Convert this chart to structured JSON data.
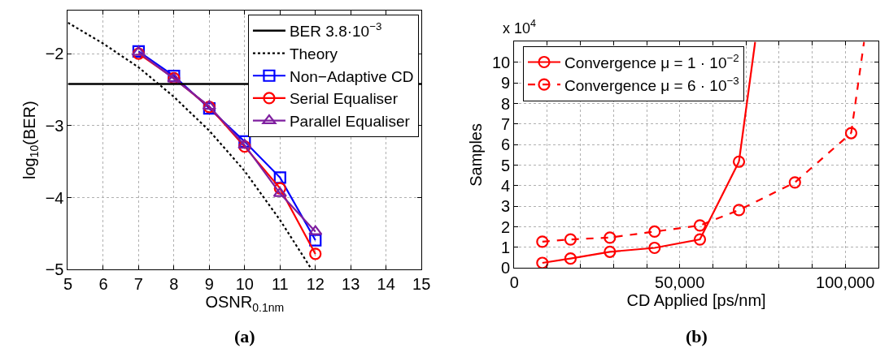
{
  "chart_data": [
    {
      "type": "line",
      "title": "(a)",
      "xlabel": "OSNR$_{0.1nm}$",
      "ylabel": "log$_{10}$(BER)",
      "xlim": [
        5,
        15
      ],
      "xticks": [
        5,
        6,
        7,
        8,
        9,
        10,
        11,
        12,
        13,
        14,
        15
      ],
      "ylim": [
        -5,
        -1.4
      ],
      "yticks": [
        -2,
        -3,
        -4,
        -5
      ],
      "grid": true,
      "legend": "top right",
      "ref_lines": [
        {
          "axis": "y",
          "value": -2.42,
          "label": "BER 3.8·10$^{−3}$",
          "color": "#000000",
          "line_style": "solid"
        }
      ],
      "series": [
        {
          "name": "Theory",
          "color": "#000000",
          "x": [
            5,
            6,
            7,
            8,
            9,
            10,
            11,
            11.9
          ],
          "values": [
            -1.57,
            -1.86,
            -2.19,
            -2.6,
            -3.07,
            -3.63,
            -4.31,
            -5
          ],
          "marker": "none",
          "line_style": "dotted"
        },
        {
          "name": "Non−Adaptive CD",
          "color": "#0000ff",
          "x": [
            7,
            8,
            9,
            10,
            11,
            12
          ],
          "values": [
            -1.97,
            -2.31,
            -2.76,
            -3.22,
            -3.72,
            -4.59
          ],
          "marker": "square",
          "line_style": "solid"
        },
        {
          "name": "Serial Equaliser",
          "color": "#ff0000",
          "x": [
            7,
            8,
            9,
            10,
            11,
            12
          ],
          "values": [
            -2.0,
            -2.34,
            -2.74,
            -3.29,
            -3.87,
            -4.78
          ],
          "marker": "circle",
          "line_style": "solid"
        },
        {
          "name": "Parallel Equaliser",
          "color": "#7f1f9f",
          "x": [
            7,
            8,
            9,
            10,
            11,
            12
          ],
          "values": [
            -1.98,
            -2.35,
            -2.73,
            -3.27,
            -3.94,
            -4.47
          ],
          "marker": "triangle",
          "line_style": "solid"
        }
      ]
    },
    {
      "type": "line",
      "title": "(b)",
      "xlabel": "CD Applied [ps/nm]",
      "ylabel": "Samples",
      "annotations": [
        "x 10$^{4}$"
      ],
      "xlim": [
        0,
        110000
      ],
      "xticks": [
        {
          "value": 0,
          "label": "0"
        },
        {
          "value": 10000,
          "label": null
        },
        {
          "value": 20000,
          "label": null
        },
        {
          "value": 30000,
          "label": null
        },
        {
          "value": 40000,
          "label": null
        },
        {
          "value": 50000,
          "label": "50,000"
        },
        {
          "value": 60000,
          "label": null
        },
        {
          "value": 70000,
          "label": null
        },
        {
          "value": 80000,
          "label": null
        },
        {
          "value": 90000,
          "label": null
        },
        {
          "value": 100000,
          "label": "100,000"
        }
      ],
      "ylim": [
        0,
        11
      ],
      "yticks": [
        0,
        1,
        2,
        3,
        4,
        5,
        6,
        7,
        8,
        9,
        10
      ],
      "grid": true,
      "legend": "top left",
      "series": [
        {
          "name": "Convergence μ = 1 · 10$^{−2}$",
          "color": "#ff0000",
          "x": [
            8500,
            17000,
            28900,
            42400,
            56100,
            67900
          ],
          "values": [
            0.25,
            0.46,
            0.79,
            0.98,
            1.39,
            5.17
          ],
          "marker": "circle",
          "line_style": "solid"
        },
        {
          "color": "#ff0000",
          "x": [
            67900,
            72800
          ],
          "values": [
            5.17,
            11
          ],
          "marker": "none",
          "line_style": "solid"
        },
        {
          "name": "Convergence μ = 6 · 10$^{−3}$",
          "color": "#ff0000",
          "x": [
            8500,
            17000,
            28900,
            42400,
            56100,
            67900,
            84800,
            101800
          ],
          "values": [
            1.28,
            1.39,
            1.48,
            1.77,
            2.07,
            2.82,
            4.16,
            6.56
          ],
          "marker": "circle",
          "line_style": "dashed"
        },
        {
          "color": "#ff0000",
          "x": [
            101800,
            105700
          ],
          "values": [
            6.56,
            11
          ],
          "marker": "none",
          "line_style": "dashed"
        }
      ]
    }
  ]
}
